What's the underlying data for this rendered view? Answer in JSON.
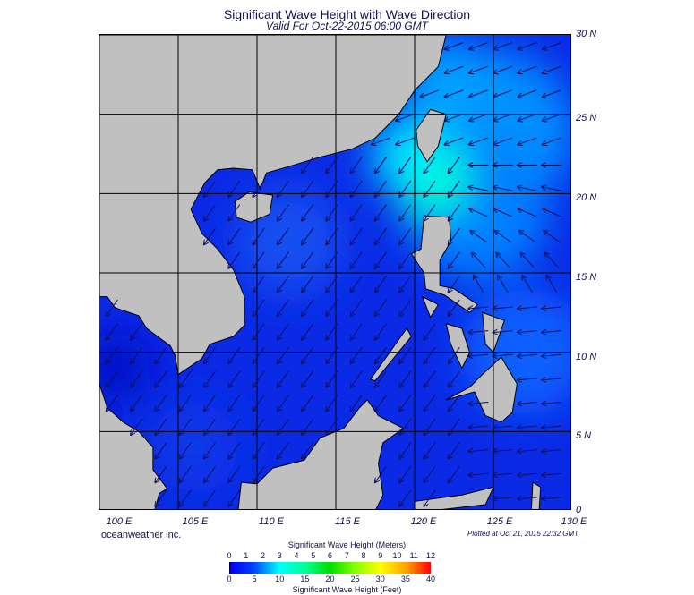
{
  "title": "Significant Wave Height with Wave Direction",
  "subtitle": "Valid For Oct-22-2015 06:00 GMT",
  "extent": {
    "lon": [
      100,
      130
    ],
    "lat": [
      0,
      30
    ]
  },
  "lat_labels": [
    "30 N",
    "25 N",
    "20 N",
    "15 N",
    "10 N",
    "5 N",
    "0"
  ],
  "lon_labels": [
    "100 E",
    "105 E",
    "110 E",
    "115 E",
    "120 E",
    "125 E",
    "130 E"
  ],
  "credit": "oceanweather inc.",
  "plotted": "Plotted at Oct 21, 2015 22:32 GMT",
  "colorbar": {
    "title_meters": "Significant Wave Height (Meters)",
    "title_feet": "Significant Wave Height (Feet)",
    "meters_ticks": [
      "0",
      "1",
      "2",
      "3",
      "4",
      "5",
      "6",
      "7",
      "8",
      "9",
      "10",
      "11",
      "12"
    ],
    "feet_ticks": [
      "0",
      "5",
      "10",
      "15",
      "20",
      "25",
      "30",
      "35",
      "40"
    ]
  },
  "colors": {
    "land": "#c0c0c0",
    "sea_low": "#0a2ae6",
    "sea_high": "#00ffd0",
    "arrow": "#101060"
  }
}
